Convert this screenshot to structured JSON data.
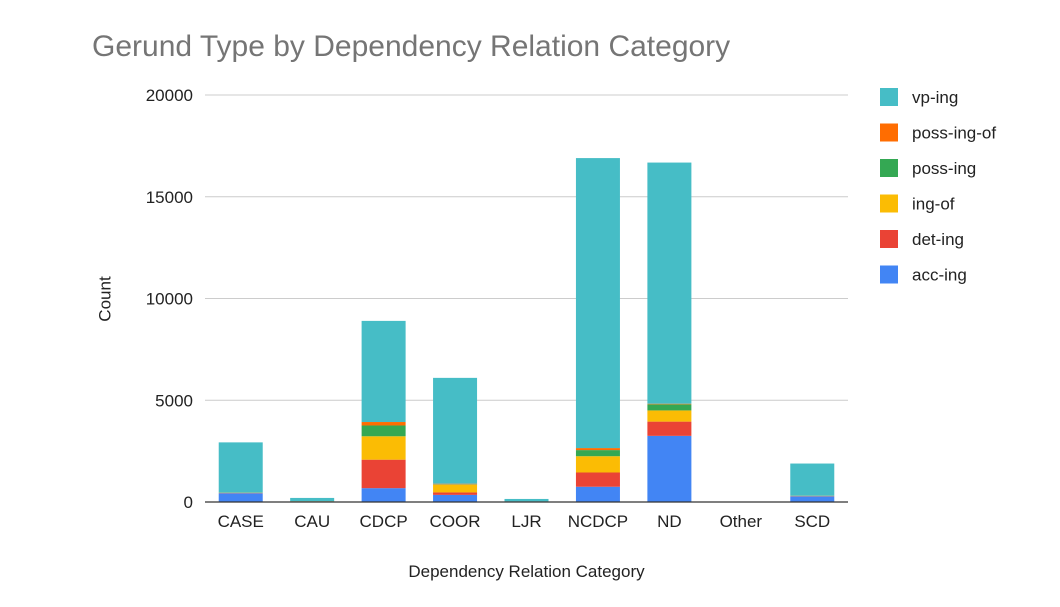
{
  "chart_data": {
    "type": "bar",
    "stacked": true,
    "title": "Gerund Type by Dependency Relation Category",
    "xlabel": "Dependency Relation Category",
    "ylabel": "Count",
    "ylim": [
      0,
      20000
    ],
    "yticks": [
      0,
      5000,
      10000,
      15000,
      20000
    ],
    "grid": true,
    "legend_position": "right",
    "categories": [
      "CASE",
      "CAU",
      "CDCP",
      "COOR",
      "LJR",
      "NCDCP",
      "ND",
      "Other",
      "SCD"
    ],
    "series": [
      {
        "name": "acc-ing",
        "color": "#4285f4",
        "values": [
          430,
          20,
          680,
          350,
          10,
          750,
          3250,
          0,
          280
        ]
      },
      {
        "name": "det-ing",
        "color": "#ea4335",
        "values": [
          10,
          5,
          1400,
          120,
          5,
          700,
          700,
          0,
          10
        ]
      },
      {
        "name": "ing-of",
        "color": "#fbbc04",
        "values": [
          10,
          5,
          1150,
          380,
          5,
          800,
          550,
          0,
          10
        ]
      },
      {
        "name": "poss-ing",
        "color": "#34a853",
        "values": [
          5,
          5,
          530,
          20,
          5,
          300,
          300,
          0,
          5
        ]
      },
      {
        "name": "poss-ing-of",
        "color": "#ff6d01",
        "values": [
          5,
          5,
          170,
          30,
          5,
          100,
          30,
          0,
          5
        ]
      },
      {
        "name": "vp-ing",
        "color": "#46bdc6",
        "values": [
          2470,
          160,
          4970,
          5200,
          120,
          14250,
          11850,
          0,
          1580
        ]
      }
    ],
    "legend_order": [
      "vp-ing",
      "poss-ing-of",
      "poss-ing",
      "ing-of",
      "det-ing",
      "acc-ing"
    ]
  }
}
